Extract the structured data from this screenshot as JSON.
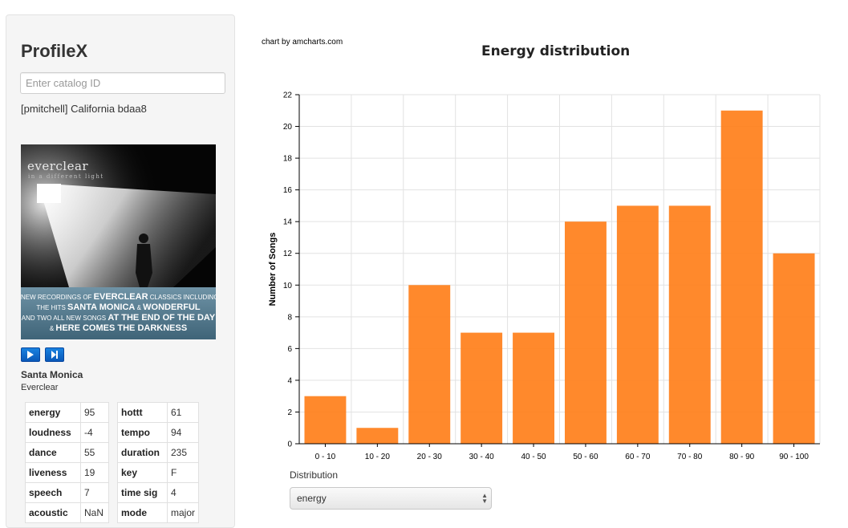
{
  "app": {
    "title": "ProfileX"
  },
  "catalog": {
    "placeholder": "Enter catalog ID"
  },
  "profile": {
    "id_text": "[pmitchell] California bdaa8"
  },
  "album": {
    "band": "everclear",
    "subtitle": "in a different light",
    "promo_lines": [
      [
        "New recordings of ",
        "EVERCLEAR",
        " classics including"
      ],
      [
        "the hits ",
        "SANTA MONICA",
        " & ",
        "WONDERFUL"
      ],
      [
        "and two all new songs ",
        "AT THE END OF THE DAY"
      ],
      [
        "& ",
        "HERE COMES THE DARKNESS"
      ]
    ]
  },
  "player": {
    "play_icon": "play-icon",
    "next_icon": "skip-next-icon",
    "accent": "#0d6fd6"
  },
  "song": {
    "title": "Santa Monica",
    "artist": "Everclear"
  },
  "attributes_left": [
    {
      "key": "energy",
      "value": "95"
    },
    {
      "key": "loudness",
      "value": "-4"
    },
    {
      "key": "dance",
      "value": "55"
    },
    {
      "key": "liveness",
      "value": "19"
    },
    {
      "key": "speech",
      "value": "7"
    },
    {
      "key": "acoustic",
      "value": "NaN"
    }
  ],
  "attributes_right": [
    {
      "key": "hottt",
      "value": "61"
    },
    {
      "key": "tempo",
      "value": "94"
    },
    {
      "key": "duration",
      "value": "235"
    },
    {
      "key": "key",
      "value": "F"
    },
    {
      "key": "time sig",
      "value": "4"
    },
    {
      "key": "mode",
      "value": "major"
    }
  ],
  "chart": {
    "credit": "chart by amcharts.com"
  },
  "chart_data": {
    "type": "bar",
    "title": "Energy distribution",
    "xlabel": "",
    "ylabel": "Number of Songs",
    "categories": [
      "0 - 10",
      "10 - 20",
      "20 - 30",
      "30 - 40",
      "40 - 50",
      "50 - 60",
      "60 - 70",
      "70 - 80",
      "80 - 90",
      "90 - 100"
    ],
    "values": [
      3,
      1,
      10,
      7,
      7,
      14,
      15,
      15,
      21,
      12
    ],
    "ylim": [
      0,
      22
    ],
    "yticks": [
      0,
      2,
      4,
      6,
      8,
      10,
      12,
      14,
      16,
      18,
      20,
      22
    ],
    "grid": true,
    "bar_color": "#ff7f1a"
  },
  "distribution": {
    "label": "Distribution",
    "selected": "energy"
  }
}
